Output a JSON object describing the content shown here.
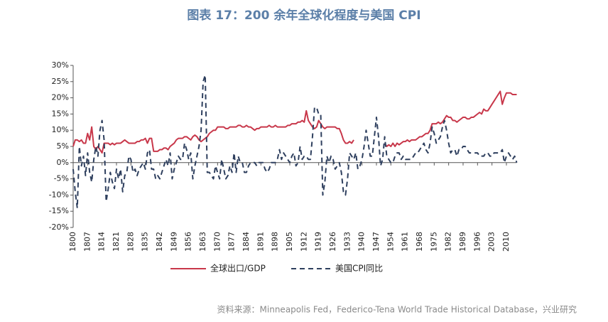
{
  "chart_data": {
    "type": "line",
    "title": "图表 17：200 余年全球化程度与美国 CPI",
    "source": "资料来源：Minneapolis Fed，Federico-Tena World Trade Historical Database，兴业研究",
    "x": [
      1800,
      1801,
      1802,
      1803,
      1804,
      1805,
      1806,
      1807,
      1808,
      1809,
      1810,
      1811,
      1812,
      1813,
      1814,
      1815,
      1816,
      1817,
      1818,
      1819,
      1820,
      1821,
      1822,
      1823,
      1824,
      1825,
      1826,
      1827,
      1828,
      1829,
      1830,
      1831,
      1832,
      1833,
      1834,
      1835,
      1836,
      1837,
      1838,
      1839,
      1840,
      1841,
      1842,
      1843,
      1844,
      1845,
      1846,
      1847,
      1848,
      1849,
      1850,
      1851,
      1852,
      1853,
      1854,
      1855,
      1856,
      1857,
      1858,
      1859,
      1860,
      1861,
      1862,
      1863,
      1864,
      1865,
      1866,
      1867,
      1868,
      1869,
      1870,
      1871,
      1872,
      1873,
      1874,
      1875,
      1876,
      1877,
      1878,
      1879,
      1880,
      1881,
      1882,
      1883,
      1884,
      1885,
      1886,
      1887,
      1888,
      1889,
      1890,
      1891,
      1892,
      1893,
      1894,
      1895,
      1896,
      1897,
      1898,
      1899,
      1900,
      1901,
      1902,
      1903,
      1904,
      1905,
      1906,
      1907,
      1908,
      1909,
      1910,
      1911,
      1912,
      1913,
      1914,
      1915,
      1916,
      1917,
      1918,
      1919,
      1920,
      1921,
      1922,
      1923,
      1924,
      1925,
      1926,
      1927,
      1928,
      1929,
      1930,
      1931,
      1932,
      1933,
      1934,
      1935,
      1936,
      1937,
      1938,
      1939,
      1940,
      1941,
      1942,
      1943,
      1944,
      1945,
      1946,
      1947,
      1948,
      1949,
      1950,
      1951,
      1952,
      1953,
      1954,
      1955,
      1956,
      1957,
      1958,
      1959,
      1960,
      1961,
      1962,
      1963,
      1964,
      1965,
      1966,
      1967,
      1968,
      1969,
      1970,
      1971,
      1972,
      1973,
      1974,
      1975,
      1976,
      1977,
      1978,
      1979,
      1980,
      1981,
      1982,
      1983,
      1984,
      1985,
      1986,
      1987,
      1988,
      1989,
      1990,
      1991,
      1992,
      1993,
      1994,
      1995,
      1996,
      1997,
      1998,
      1999,
      2000,
      2001,
      2002,
      2003,
      2004,
      2005,
      2006,
      2007,
      2008,
      2009,
      2010,
      2011,
      2012,
      2013,
      2014,
      2015
    ],
    "xlim": [
      1800,
      2015
    ],
    "xticks": [
      1800,
      1807,
      1814,
      1821,
      1828,
      1835,
      1842,
      1849,
      1856,
      1863,
      1870,
      1877,
      1884,
      1891,
      1898,
      1905,
      1912,
      1919,
      1926,
      1933,
      1940,
      1947,
      1954,
      1961,
      1968,
      1975,
      1982,
      1989,
      1996,
      2003,
      2010
    ],
    "ylim": [
      -20,
      30
    ],
    "yticks": [
      {
        "value": -20,
        "label": "-20%"
      },
      {
        "value": -15,
        "label": "-15%"
      },
      {
        "value": -10,
        "label": "-10%"
      },
      {
        "value": -5,
        "label": "-5%"
      },
      {
        "value": 0,
        "label": "0%"
      },
      {
        "value": 5,
        "label": "5%"
      },
      {
        "value": 10,
        "label": "10%"
      },
      {
        "value": 15,
        "label": "15%"
      },
      {
        "value": 20,
        "label": "20%"
      },
      {
        "value": 25,
        "label": "25%"
      },
      {
        "value": 30,
        "label": "30%"
      }
    ],
    "series": [
      {
        "name": "全球出口/GDP",
        "color": "#c8374a",
        "dash": false,
        "values": [
          5,
          7,
          7,
          6.5,
          7,
          6,
          6,
          9,
          7,
          11,
          5,
          4,
          5,
          4,
          3,
          6,
          6,
          6,
          5.5,
          6,
          5.5,
          6,
          6,
          6,
          6.5,
          7,
          6.5,
          6,
          6,
          6,
          6,
          6.5,
          6.5,
          7,
          7,
          7.5,
          6,
          7.5,
          7.5,
          3.5,
          3.5,
          3.5,
          4,
          4,
          4.5,
          4.5,
          4,
          5,
          5.5,
          6,
          7,
          7.5,
          7.5,
          7.5,
          8,
          8,
          7.5,
          7,
          8,
          8.5,
          8,
          7,
          6.5,
          7,
          7.5,
          8,
          9,
          9.5,
          10,
          10,
          11,
          11,
          11,
          11,
          10.5,
          10.5,
          11,
          11,
          11,
          11,
          11.5,
          11.5,
          11,
          11,
          11.5,
          11,
          11,
          10.5,
          10,
          10.5,
          10.5,
          11,
          11,
          11,
          11,
          11.5,
          11,
          11,
          11.5,
          11,
          11,
          11,
          11,
          11,
          11.5,
          11.5,
          12,
          12,
          12,
          12.5,
          12.5,
          13,
          12.5,
          16,
          13,
          12,
          11,
          10.5,
          11,
          13,
          12,
          11,
          10.5,
          11,
          11,
          11,
          11,
          11,
          10.5,
          10.5,
          9,
          7,
          6,
          6,
          6.5,
          6,
          7,
          null,
          null,
          null,
          null,
          null,
          null,
          null,
          null,
          null,
          null,
          null,
          null,
          null,
          null,
          6,
          5,
          5.5,
          5,
          6,
          5,
          6,
          5.5,
          6,
          6.5,
          6.5,
          7,
          6.5,
          7,
          7,
          7,
          7.5,
          8,
          8,
          8.5,
          9,
          9,
          10,
          12,
          12,
          12,
          12.5,
          12,
          12.5,
          13.5,
          14.5,
          14,
          14,
          13,
          13,
          12.5,
          13,
          13.5,
          14,
          14,
          13.5,
          13.5,
          14,
          14,
          14.5,
          15,
          15.5,
          15,
          16.5,
          16,
          16,
          17,
          18,
          19,
          20,
          21,
          22,
          18,
          20,
          21.5,
          21.5,
          21.5,
          21,
          21,
          21
        ]
      },
      {
        "name": "美国CPI同比",
        "color": "#2e3f5e",
        "dash": true,
        "values": [
          -2,
          -9,
          -14,
          5,
          -1,
          2,
          -4,
          3,
          -3,
          -6,
          1,
          5,
          2,
          10,
          13,
          7,
          -12,
          -8,
          -3,
          -6,
          -8,
          -2,
          -5,
          -2,
          -9,
          -4,
          -3,
          2,
          1,
          -3,
          -2,
          -4,
          -2,
          -1,
          0,
          -2,
          3,
          4,
          -2,
          -2,
          -5,
          -4,
          -5,
          -3,
          -1,
          1,
          -1,
          3,
          -5,
          -2,
          0,
          2,
          1,
          1,
          6,
          4,
          1,
          3,
          -5,
          -1,
          2,
          5,
          10,
          25,
          27,
          -3,
          -3,
          -4,
          -5,
          -1,
          -3,
          -5,
          1,
          -2,
          -5,
          -4,
          -1,
          -3,
          3,
          -3,
          2,
          0,
          0,
          -3,
          -3,
          -1,
          0,
          0,
          0,
          -1,
          0,
          0,
          0,
          -2,
          -3,
          -2,
          0,
          0,
          0,
          1,
          4,
          1,
          3,
          2,
          1,
          0,
          2,
          3,
          -1,
          0,
          5,
          1,
          2,
          2,
          1,
          1,
          8,
          17,
          17,
          15,
          15,
          -10,
          -6,
          2,
          0,
          2,
          1,
          -2,
          -1,
          0,
          -3,
          -9,
          -10,
          -5,
          3,
          2,
          1,
          3,
          -2,
          -1,
          1,
          5,
          10,
          6,
          2,
          2,
          8,
          14,
          8,
          -1,
          1,
          8,
          2,
          1,
          0,
          0,
          2,
          3,
          3,
          1,
          2,
          1,
          1,
          1,
          1,
          2,
          3,
          3,
          4,
          5,
          6,
          4,
          3,
          6,
          11,
          9,
          6,
          7,
          8,
          11,
          13,
          10,
          6,
          3,
          4,
          4,
          2,
          4,
          4,
          5,
          5,
          4,
          3,
          3,
          3,
          3,
          3,
          2,
          2,
          2,
          3,
          3,
          2,
          2,
          3,
          3,
          3,
          3,
          4,
          0,
          2,
          3,
          2,
          1,
          2,
          0
        ]
      }
    ]
  }
}
